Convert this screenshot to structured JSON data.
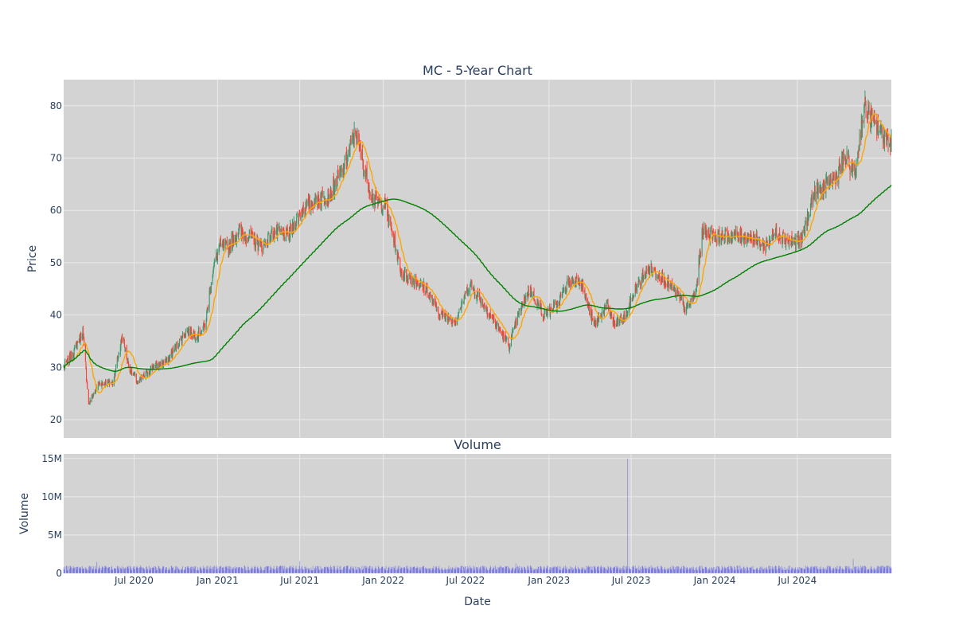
{
  "chart_data": [
    {
      "type": "candlestick",
      "title": "MC - 5-Year Chart",
      "xlabel": "",
      "ylabel": "Price",
      "xlim": [
        "2020-01-28",
        "2025-01-24"
      ],
      "ylim": [
        16.5,
        85
      ],
      "y_ticks": [
        20,
        30,
        40,
        50,
        60,
        70,
        80
      ],
      "grid": true,
      "legend": "none",
      "colors": {
        "increasing": "#3d9970",
        "decreasing": "#ff4136",
        "ma_short": "#ffa500",
        "ma_long": "#008000",
        "plot_bg": "#d3d3d3",
        "grid": "#ebebeb"
      },
      "close_anchors": {
        "x": [
          "2020-01-28",
          "2020-02-20",
          "2020-03-10",
          "2020-03-23",
          "2020-04-15",
          "2020-05-15",
          "2020-06-05",
          "2020-06-20",
          "2020-07-10",
          "2020-08-10",
          "2020-09-10",
          "2020-10-10",
          "2020-10-25",
          "2020-11-15",
          "2020-12-05",
          "2020-12-20",
          "2021-01-05",
          "2021-01-25",
          "2021-02-15",
          "2021-03-10",
          "2021-04-10",
          "2021-05-05",
          "2021-06-05",
          "2021-07-05",
          "2021-08-05",
          "2021-09-05",
          "2021-10-05",
          "2021-11-01",
          "2021-11-20",
          "2021-12-10",
          "2022-01-05",
          "2022-01-20",
          "2022-02-10",
          "2022-03-05",
          "2022-04-05",
          "2022-05-05",
          "2022-06-10",
          "2022-07-10",
          "2022-08-10",
          "2022-09-15",
          "2022-10-05",
          "2022-10-25",
          "2022-11-20",
          "2022-12-20",
          "2023-01-20",
          "2023-02-10",
          "2023-03-10",
          "2023-04-10",
          "2023-05-10",
          "2023-05-25",
          "2023-06-20",
          "2023-07-10",
          "2023-08-10",
          "2023-09-10",
          "2023-10-10",
          "2023-10-30",
          "2023-11-20",
          "2023-12-05",
          "2024-01-10",
          "2024-02-15",
          "2024-03-20",
          "2024-04-20",
          "2024-05-15",
          "2024-06-15",
          "2024-07-10",
          "2024-08-05",
          "2024-08-25",
          "2024-09-20",
          "2024-10-15",
          "2024-11-05",
          "2024-11-25",
          "2024-12-20",
          "2025-01-24"
        ],
        "close": [
          30,
          33,
          37,
          23,
          27,
          27,
          36,
          30,
          27,
          30,
          31,
          35,
          37,
          36,
          38,
          48,
          53,
          53,
          56,
          55,
          53,
          56,
          55,
          60,
          62,
          63,
          68,
          75,
          68,
          62,
          61,
          56,
          48,
          47,
          45,
          40,
          39,
          46,
          42,
          37,
          34,
          40,
          45,
          40,
          42,
          46,
          47,
          38,
          42,
          38,
          40,
          45,
          49,
          47,
          44,
          41,
          44,
          56,
          55,
          55,
          55,
          53,
          56,
          54,
          54,
          63,
          64,
          66,
          70,
          67,
          80,
          76,
          73
        ]
      }
    },
    {
      "type": "bar",
      "title": "Volume",
      "xlabel": "Date",
      "ylabel": "Volume",
      "ylim": [
        0,
        15600000
      ],
      "y_ticks": [
        0,
        5000000,
        10000000,
        15000000
      ],
      "y_tick_labels": [
        "0",
        "5M",
        "10M",
        "15M"
      ],
      "x_ticks": [
        "2020-07-01",
        "2021-01-01",
        "2021-07-01",
        "2022-01-01",
        "2022-07-01",
        "2023-01-01",
        "2023-07-01",
        "2024-01-01",
        "2024-07-01"
      ],
      "x_tick_labels": [
        "Jul 2020",
        "Jan 2021",
        "Jul 2021",
        "Jan 2022",
        "Jul 2022",
        "Jan 2023",
        "Jul 2023",
        "Jan 2024",
        "Jul 2024"
      ],
      "typical_volume": 700000,
      "spikes": [
        {
          "x": "2023-06-23",
          "volume": 15000000
        },
        {
          "x": "2024-11-01",
          "volume": 1900000
        },
        {
          "x": "2021-07-01",
          "volume": 1600000
        },
        {
          "x": "2020-04-10",
          "volume": 1500000
        },
        {
          "x": "2022-10-20",
          "volume": 1300000
        }
      ],
      "bar_color": "rgba(0,0,255,0.3)"
    }
  ]
}
